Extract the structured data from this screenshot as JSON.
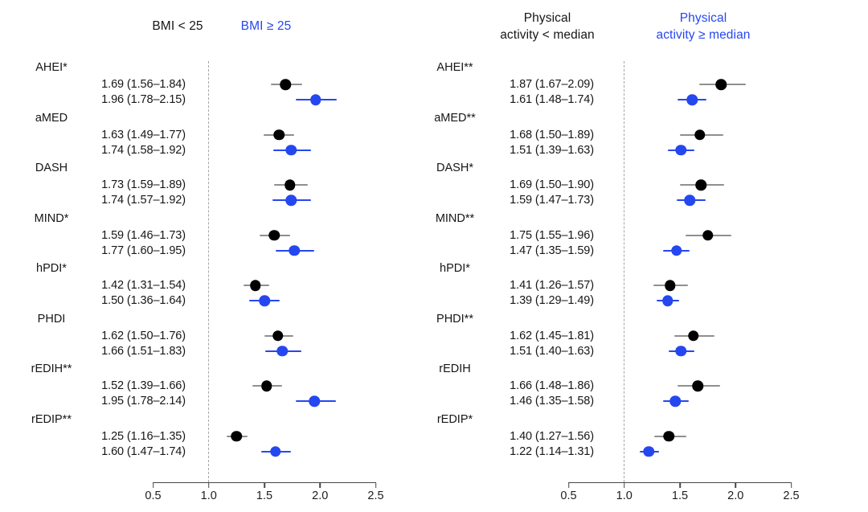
{
  "colors": {
    "text_black": "#161616",
    "series_black": "#000000",
    "series_blue": "#2547f0",
    "ci_gray": "#8f8f8f",
    "axis": "#474747",
    "refline_gray": "#a6a6a6"
  },
  "chart_data": {
    "type": "scatter",
    "variant": "forest_plot",
    "x_axis": {
      "range": [
        0.5,
        2.5
      ],
      "reference_line": 1.0
    },
    "panels": [
      {
        "id": "bmi",
        "series_headers": [
          {
            "label": "BMI < 25",
            "series": "black"
          },
          {
            "label": "BMI ≥ 25",
            "series": "blue"
          }
        ],
        "axis": {
          "ticks": [
            0.5,
            1.0,
            1.5,
            2.0,
            2.5
          ],
          "tick_labels": [
            "0.5",
            "1.0",
            "1.5",
            "2.0",
            "2.5"
          ],
          "refline": 1.0
        },
        "groups": [
          {
            "label": "AHEI*",
            "rows": [
              {
                "series": "black",
                "text": "1.69 (1.56–1.84)",
                "est": 1.69,
                "lo": 1.56,
                "hi": 1.84
              },
              {
                "series": "blue",
                "text": "1.96 (1.78–2.15)",
                "est": 1.96,
                "lo": 1.78,
                "hi": 2.15
              }
            ]
          },
          {
            "label": "aMED",
            "rows": [
              {
                "series": "black",
                "text": "1.63 (1.49–1.77)",
                "est": 1.63,
                "lo": 1.49,
                "hi": 1.77
              },
              {
                "series": "blue",
                "text": "1.74 (1.58–1.92)",
                "est": 1.74,
                "lo": 1.58,
                "hi": 1.92
              }
            ]
          },
          {
            "label": "DASH",
            "rows": [
              {
                "series": "black",
                "text": "1.73 (1.59–1.89)",
                "est": 1.73,
                "lo": 1.59,
                "hi": 1.89
              },
              {
                "series": "blue",
                "text": "1.74 (1.57–1.92)",
                "est": 1.74,
                "lo": 1.57,
                "hi": 1.92
              }
            ]
          },
          {
            "label": "MIND*",
            "rows": [
              {
                "series": "black",
                "text": "1.59 (1.46–1.73)",
                "est": 1.59,
                "lo": 1.46,
                "hi": 1.73
              },
              {
                "series": "blue",
                "text": "1.77 (1.60–1.95)",
                "est": 1.77,
                "lo": 1.6,
                "hi": 1.95
              }
            ]
          },
          {
            "label": "hPDI*",
            "rows": [
              {
                "series": "black",
                "text": "1.42 (1.31–1.54)",
                "est": 1.42,
                "lo": 1.31,
                "hi": 1.54
              },
              {
                "series": "blue",
                "text": "1.50 (1.36–1.64)",
                "est": 1.5,
                "lo": 1.36,
                "hi": 1.64
              }
            ]
          },
          {
            "label": "PHDI",
            "rows": [
              {
                "series": "black",
                "text": "1.62 (1.50–1.76)",
                "est": 1.62,
                "lo": 1.5,
                "hi": 1.76
              },
              {
                "series": "blue",
                "text": "1.66 (1.51–1.83)",
                "est": 1.66,
                "lo": 1.51,
                "hi": 1.83
              }
            ]
          },
          {
            "label": "rEDIH**",
            "rows": [
              {
                "series": "black",
                "text": "1.52 (1.39–1.66)",
                "est": 1.52,
                "lo": 1.39,
                "hi": 1.66
              },
              {
                "series": "blue",
                "text": "1.95 (1.78–2.14)",
                "est": 1.95,
                "lo": 1.78,
                "hi": 2.14
              }
            ]
          },
          {
            "label": "rEDIP**",
            "rows": [
              {
                "series": "black",
                "text": "1.25 (1.16–1.35)",
                "est": 1.25,
                "lo": 1.16,
                "hi": 1.35
              },
              {
                "series": "blue",
                "text": "1.60 (1.47–1.74)",
                "est": 1.6,
                "lo": 1.47,
                "hi": 1.74
              }
            ]
          }
        ]
      },
      {
        "id": "physical-activity",
        "series_headers": [
          {
            "label": "Physical\nactivity < median",
            "series": "black"
          },
          {
            "label": "Physical\nactivity ≥ median",
            "series": "blue"
          }
        ],
        "axis": {
          "ticks": [
            0.5,
            1.0,
            1.5,
            2.0,
            2.5
          ],
          "tick_labels": [
            "0.5",
            "1.0",
            "1.5",
            "2.0",
            "2.5"
          ],
          "refline": 1.0
        },
        "groups": [
          {
            "label": "AHEI**",
            "rows": [
              {
                "series": "black",
                "text": "1.87 (1.67–2.09)",
                "est": 1.87,
                "lo": 1.67,
                "hi": 2.09
              },
              {
                "series": "blue",
                "text": "1.61 (1.48–1.74)",
                "est": 1.61,
                "lo": 1.48,
                "hi": 1.74
              }
            ]
          },
          {
            "label": "aMED**",
            "rows": [
              {
                "series": "black",
                "text": "1.68 (1.50–1.89)",
                "est": 1.68,
                "lo": 1.5,
                "hi": 1.89
              },
              {
                "series": "blue",
                "text": "1.51 (1.39–1.63)",
                "est": 1.51,
                "lo": 1.39,
                "hi": 1.63
              }
            ]
          },
          {
            "label": "DASH*",
            "rows": [
              {
                "series": "black",
                "text": "1.69 (1.50–1.90)",
                "est": 1.69,
                "lo": 1.5,
                "hi": 1.9
              },
              {
                "series": "blue",
                "text": "1.59 (1.47–1.73)",
                "est": 1.59,
                "lo": 1.47,
                "hi": 1.73
              }
            ]
          },
          {
            "label": "MIND**",
            "rows": [
              {
                "series": "black",
                "text": "1.75 (1.55–1.96)",
                "est": 1.75,
                "lo": 1.55,
                "hi": 1.96
              },
              {
                "series": "blue",
                "text": "1.47 (1.35–1.59)",
                "est": 1.47,
                "lo": 1.35,
                "hi": 1.59
              }
            ]
          },
          {
            "label": "hPDI*",
            "rows": [
              {
                "series": "black",
                "text": "1.41 (1.26–1.57)",
                "est": 1.41,
                "lo": 1.26,
                "hi": 1.57
              },
              {
                "series": "blue",
                "text": "1.39 (1.29–1.49)",
                "est": 1.39,
                "lo": 1.29,
                "hi": 1.49
              }
            ]
          },
          {
            "label": "PHDI**",
            "rows": [
              {
                "series": "black",
                "text": "1.62 (1.45–1.81)",
                "est": 1.62,
                "lo": 1.45,
                "hi": 1.81
              },
              {
                "series": "blue",
                "text": "1.51 (1.40–1.63)",
                "est": 1.51,
                "lo": 1.4,
                "hi": 1.63
              }
            ]
          },
          {
            "label": "rEDIH",
            "rows": [
              {
                "series": "black",
                "text": "1.66 (1.48–1.86)",
                "est": 1.66,
                "lo": 1.48,
                "hi": 1.86
              },
              {
                "series": "blue",
                "text": "1.46 (1.35–1.58)",
                "est": 1.46,
                "lo": 1.35,
                "hi": 1.58
              }
            ]
          },
          {
            "label": "rEDIP*",
            "rows": [
              {
                "series": "black",
                "text": "1.40 (1.27–1.56)",
                "est": 1.4,
                "lo": 1.27,
                "hi": 1.56
              },
              {
                "series": "blue",
                "text": "1.22 (1.14–1.31)",
                "est": 1.22,
                "lo": 1.14,
                "hi": 1.31
              }
            ]
          }
        ]
      }
    ]
  }
}
